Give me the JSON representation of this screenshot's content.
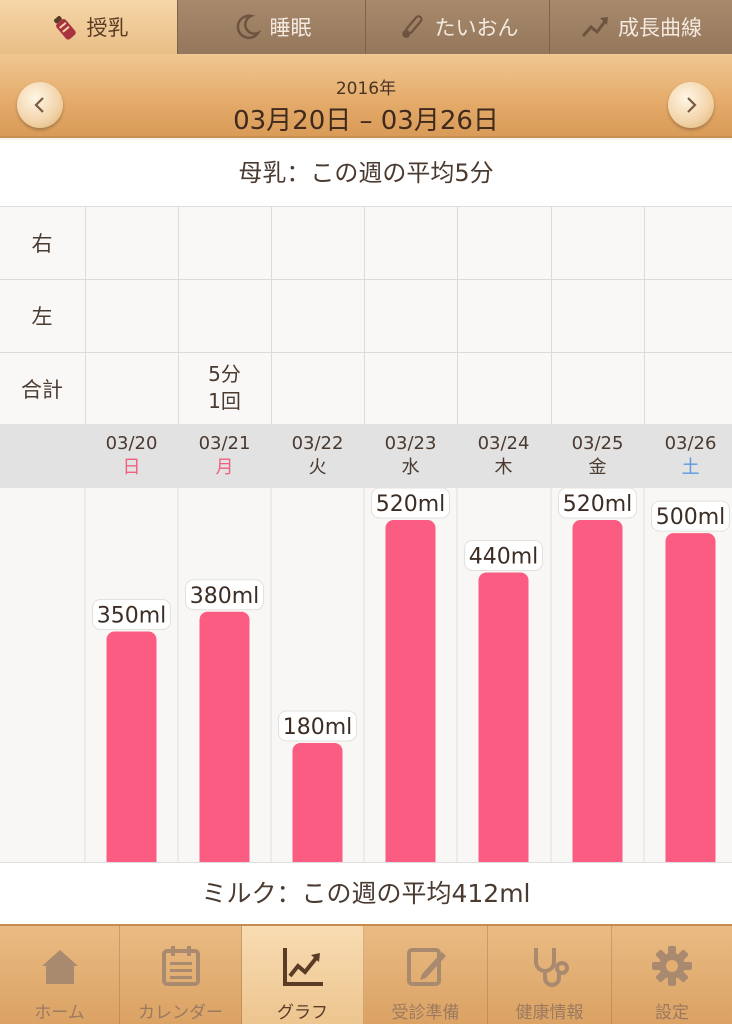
{
  "tabs": [
    {
      "label": "授乳",
      "icon": "bottle-icon",
      "active": true
    },
    {
      "label": "睡眠",
      "icon": "moon-icon",
      "active": false
    },
    {
      "label": "たいおん",
      "icon": "thermometer-icon",
      "active": false
    },
    {
      "label": "成長曲線",
      "icon": "growth-arrow-icon",
      "active": false
    }
  ],
  "header": {
    "year": "2016年",
    "range": "03月20日 – 03月26日"
  },
  "breast_summary": "母乳：この週の平均5分",
  "breast_table": {
    "row_labels": [
      "右",
      "左",
      "合計"
    ],
    "totals": [
      "",
      "5分\n1回",
      "",
      "",
      "",
      "",
      ""
    ]
  },
  "days": [
    {
      "date": "03/20",
      "weekday": "日",
      "color": "#f0607f"
    },
    {
      "date": "03/21",
      "weekday": "月",
      "color": "#f0607f"
    },
    {
      "date": "03/22",
      "weekday": "火",
      "color": "#4a3a30"
    },
    {
      "date": "03/23",
      "weekday": "水",
      "color": "#4a3a30"
    },
    {
      "date": "03/24",
      "weekday": "木",
      "color": "#4a3a30"
    },
    {
      "date": "03/25",
      "weekday": "金",
      "color": "#4a3a30"
    },
    {
      "date": "03/26",
      "weekday": "土",
      "color": "#5b9ae0"
    }
  ],
  "chart_data": {
    "type": "bar",
    "categories": [
      "03/20",
      "03/21",
      "03/22",
      "03/23",
      "03/24",
      "03/25",
      "03/26"
    ],
    "values": [
      350,
      380,
      180,
      520,
      440,
      520,
      500
    ],
    "labels": [
      "350ml",
      "380ml",
      "180ml",
      "520ml",
      "440ml",
      "520ml",
      "500ml"
    ],
    "color": "#fb5d82"
  },
  "milk_summary": "ミルク：この週の平均412ml",
  "bottom_nav": [
    {
      "label": "ホーム",
      "icon": "home-icon",
      "active": false
    },
    {
      "label": "カレンダー",
      "icon": "calendar-icon",
      "active": false
    },
    {
      "label": "グラフ",
      "icon": "graph-icon",
      "active": true
    },
    {
      "label": "受診準備",
      "icon": "memo-icon",
      "active": false
    },
    {
      "label": "健康情報",
      "icon": "stethoscope-icon",
      "active": false
    },
    {
      "label": "設定",
      "icon": "gear-icon",
      "active": false
    }
  ]
}
